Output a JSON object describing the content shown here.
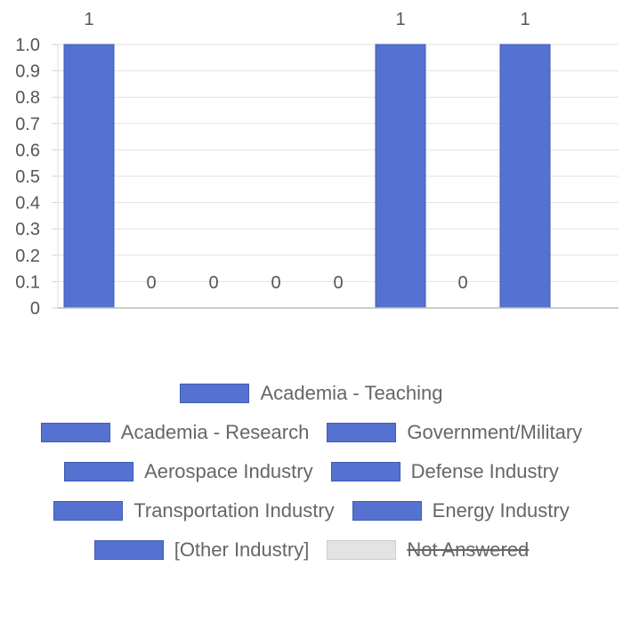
{
  "chart_data": {
    "type": "bar",
    "categories": [
      "Academia - Teaching",
      "Academia - Research",
      "Government/Military",
      "Aerospace Industry",
      "Defense Industry",
      "Transportation Industry",
      "Energy Industry",
      "[Other Industry]",
      "Not Answered"
    ],
    "values": [
      1,
      0,
      0,
      0,
      0,
      1,
      0,
      1,
      null
    ],
    "data_labels": [
      "1",
      "0",
      "0",
      "0",
      "0",
      "1",
      "0",
      "1",
      ""
    ],
    "hidden": [
      false,
      false,
      false,
      false,
      false,
      false,
      false,
      false,
      true
    ],
    "ylim": [
      0,
      1.0
    ],
    "yticks": [
      "0",
      "0.1",
      "0.2",
      "0.3",
      "0.4",
      "0.5",
      "0.6",
      "0.7",
      "0.8",
      "0.9",
      "1.0"
    ],
    "grid": true,
    "legend_position": "bottom",
    "bar_color": "#5572d0",
    "bar_border": "#3f5bb5",
    "hidden_color": "#e3e3e3",
    "hidden_border": "#cccccc"
  },
  "legend": [
    {
      "label": "Academia - Teaching",
      "struck": false
    },
    {
      "label": "Academia - Research",
      "struck": false
    },
    {
      "label": "Government/Military",
      "struck": false
    },
    {
      "label": "Aerospace Industry",
      "struck": false
    },
    {
      "label": "Defense Industry",
      "struck": false
    },
    {
      "label": "Transportation Industry",
      "struck": false
    },
    {
      "label": "Energy Industry",
      "struck": false
    },
    {
      "label": "[Other Industry]",
      "struck": false
    },
    {
      "label": "Not Answered",
      "struck": true
    }
  ]
}
